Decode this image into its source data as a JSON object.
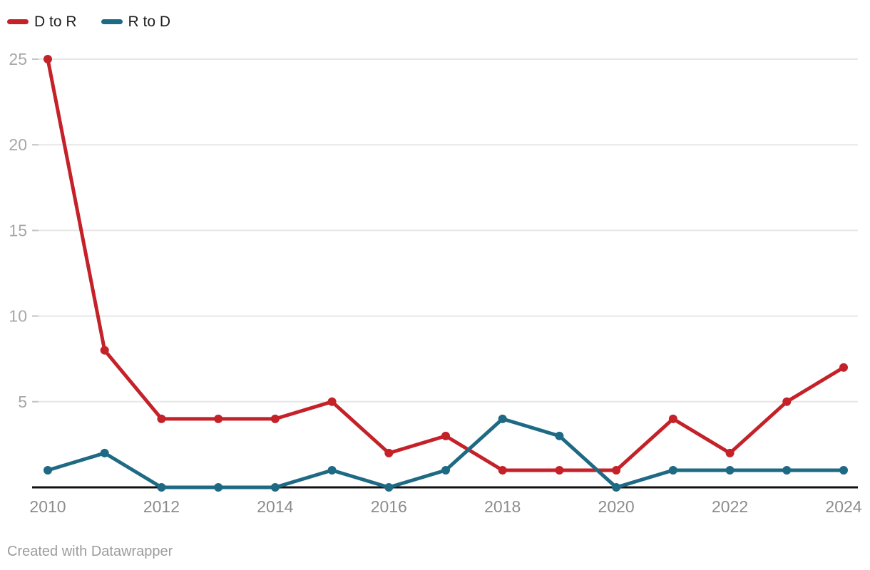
{
  "legend": {
    "items": [
      {
        "label": "D to R",
        "color": "#c42129"
      },
      {
        "label": "R to D",
        "color": "#1e6983"
      }
    ]
  },
  "footer": {
    "text": "Created with Datawrapper"
  },
  "chart_data": {
    "type": "line",
    "x": [
      2010,
      2011,
      2012,
      2013,
      2014,
      2015,
      2016,
      2017,
      2018,
      2019,
      2020,
      2021,
      2022,
      2023,
      2024
    ],
    "x_tick_labels": [
      2010,
      2012,
      2014,
      2016,
      2018,
      2020,
      2022,
      2024
    ],
    "y_ticks": [
      5,
      10,
      15,
      20,
      25
    ],
    "ylim": [
      0,
      25
    ],
    "series": [
      {
        "name": "D to R",
        "color": "#c42129",
        "values": [
          25,
          8,
          4,
          4,
          4,
          5,
          2,
          3,
          1,
          1,
          1,
          4,
          2,
          5,
          7
        ]
      },
      {
        "name": "R to D",
        "color": "#1e6983",
        "values": [
          1,
          2,
          0,
          0,
          0,
          1,
          0,
          1,
          4,
          3,
          0,
          1,
          1,
          1,
          1
        ]
      }
    ],
    "grid": "horizontal",
    "legend_position": "top-left",
    "gridline_color": "#e7e7e7",
    "tick_color": "#c6c6c6",
    "baseline_color": "#111111",
    "axis_label_colors": {
      "y": "#a7a7a7",
      "x": "#8c8c8c"
    }
  }
}
